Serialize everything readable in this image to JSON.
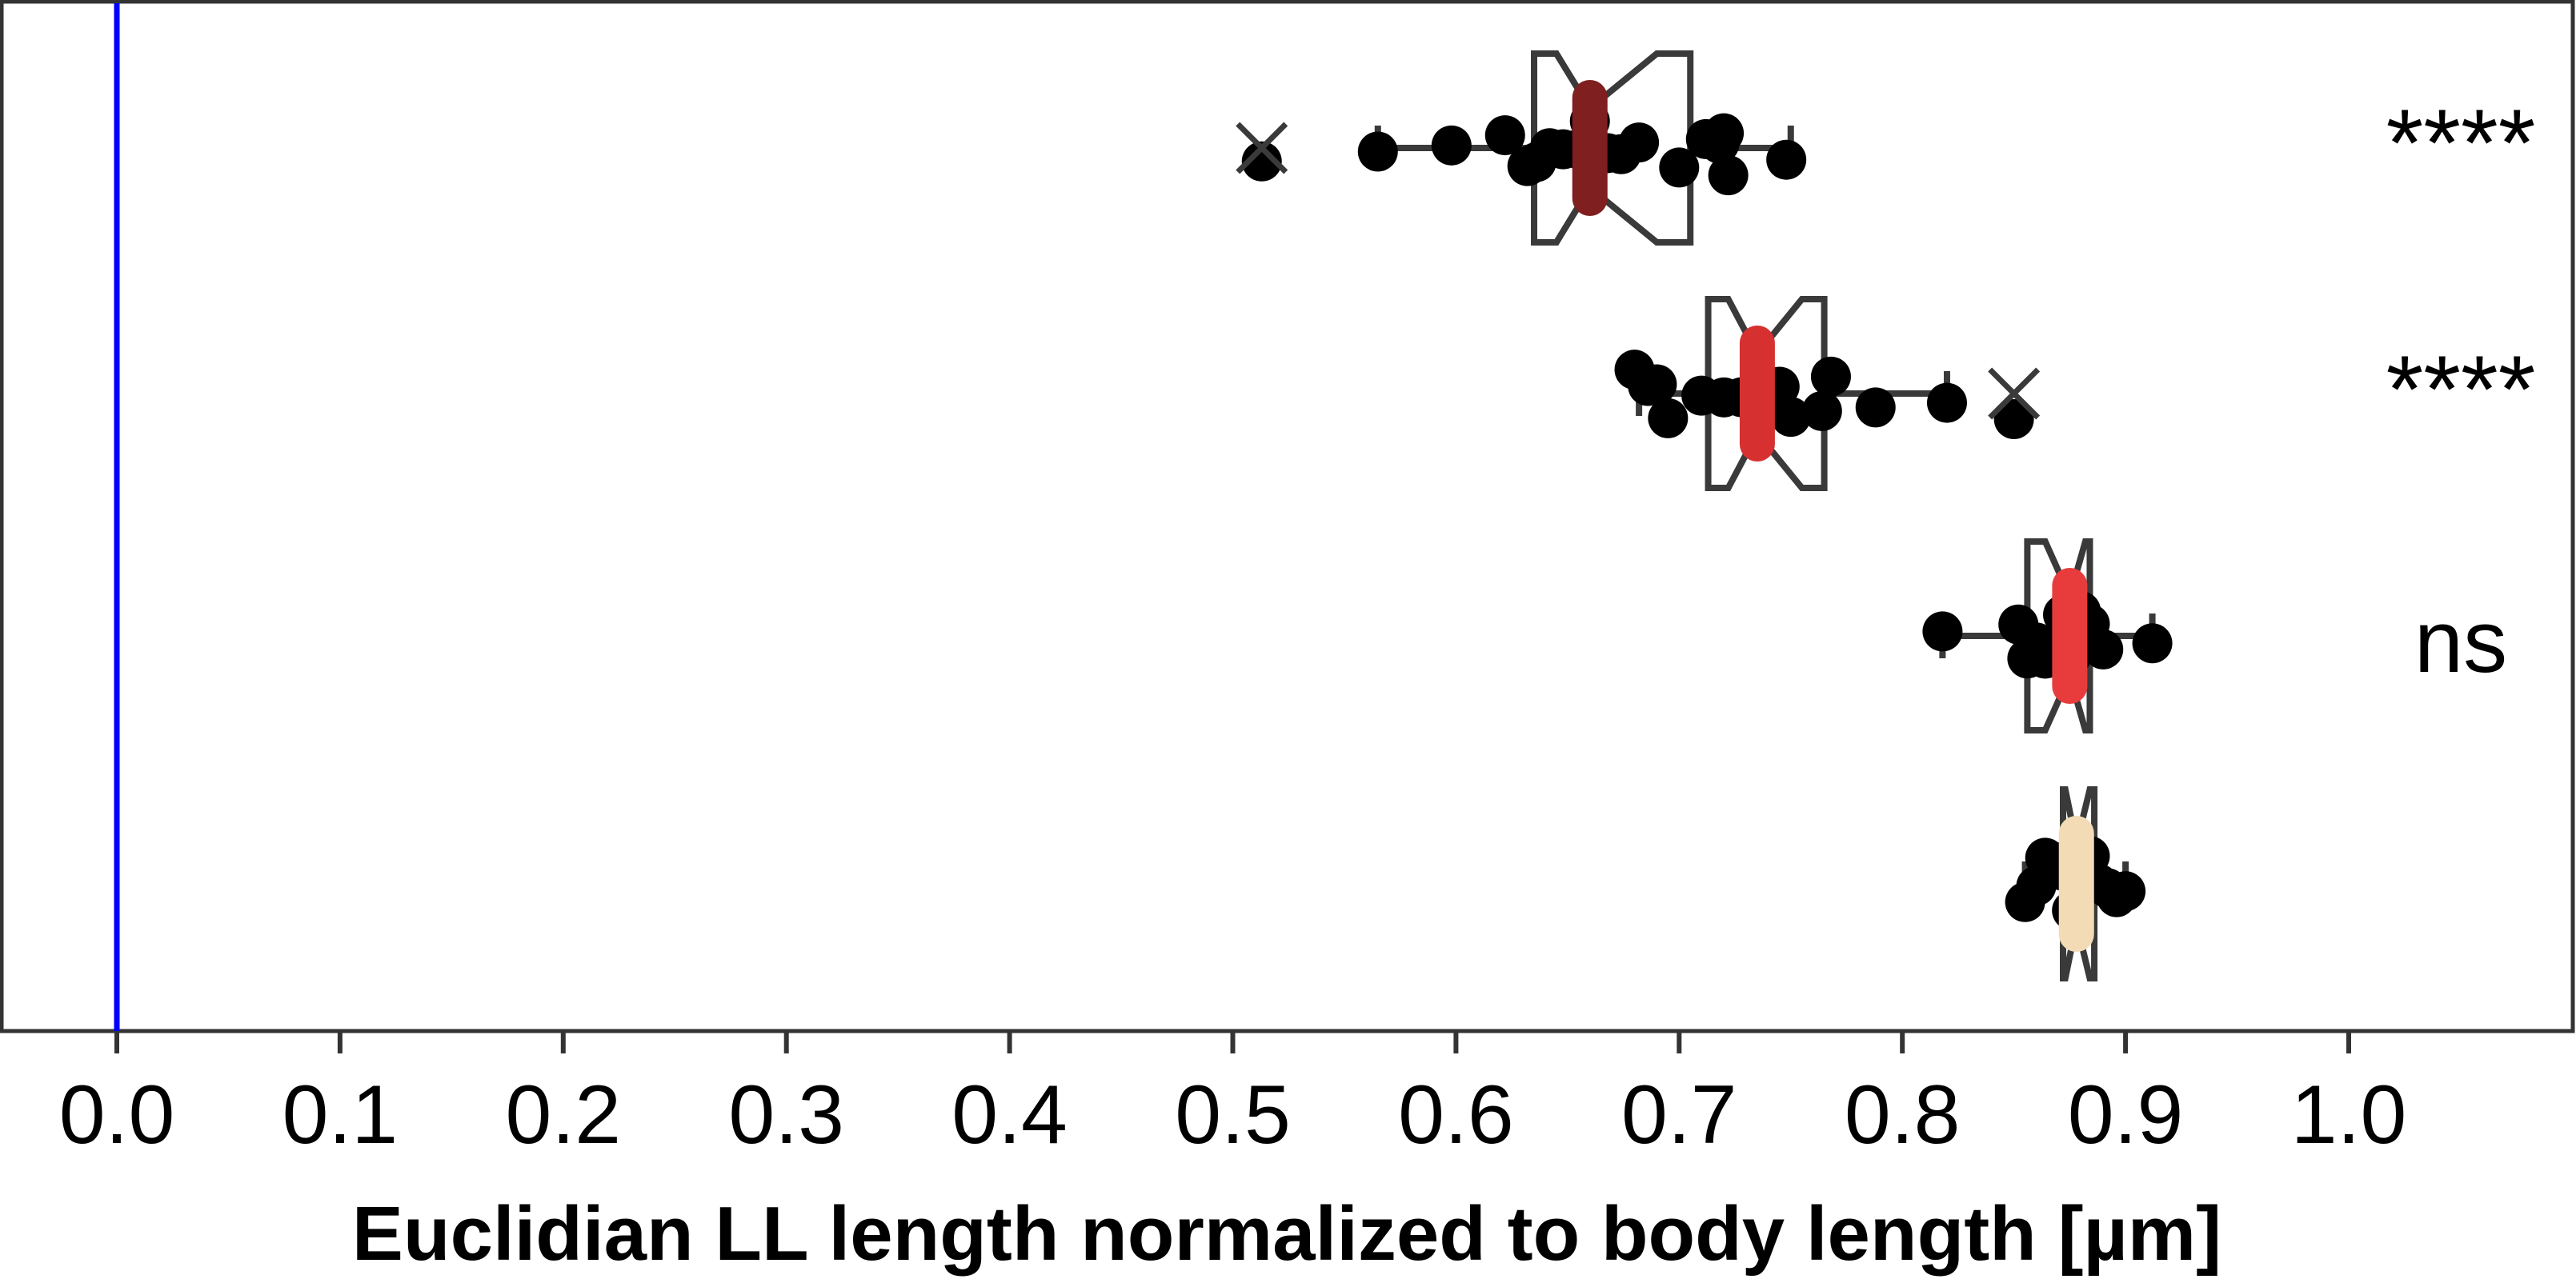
{
  "chart_data": {
    "type": "box",
    "orientation": "horizontal",
    "xlabel": "Euclidian LL length normalized to body length [µm]",
    "xlim": [
      0.0,
      1.1
    ],
    "xticks": [
      "0.0",
      "0.1",
      "0.2",
      "0.3",
      "0.4",
      "0.5",
      "0.6",
      "0.7",
      "0.8",
      "0.9",
      "1.0"
    ],
    "reference_line": {
      "x": 0.0,
      "color": "#0000ff"
    },
    "groups": [
      {
        "median": 0.66,
        "q1": 0.635,
        "q3": 0.705,
        "notch_low": 0.645,
        "notch_high": 0.69,
        "whisker_low": 0.565,
        "whisker_high": 0.75,
        "outliers": [
          0.513
        ],
        "median_color": "#7f1f1f",
        "significance": "****",
        "points": [
          0.513,
          0.565,
          0.598,
          0.622,
          0.632,
          0.636,
          0.642,
          0.648,
          0.655,
          0.66,
          0.668,
          0.674,
          0.682,
          0.7,
          0.712,
          0.718,
          0.72,
          0.722,
          0.748
        ]
      },
      {
        "median": 0.735,
        "q1": 0.713,
        "q3": 0.765,
        "notch_low": 0.722,
        "notch_high": 0.755,
        "whisker_low": 0.682,
        "whisker_high": 0.82,
        "outliers": [
          0.85
        ],
        "median_color": "#d63030",
        "significance": "****",
        "points": [
          0.68,
          0.686,
          0.69,
          0.695,
          0.71,
          0.72,
          0.728,
          0.734,
          0.74,
          0.745,
          0.75,
          0.764,
          0.768,
          0.788,
          0.82,
          0.85
        ]
      },
      {
        "median": 0.875,
        "q1": 0.856,
        "q3": 0.884,
        "notch_low": 0.864,
        "notch_high": 0.882,
        "whisker_low": 0.818,
        "whisker_high": 0.912,
        "outliers": [],
        "median_color": "#e83c3c",
        "significance": "ns",
        "points": [
          0.818,
          0.852,
          0.856,
          0.86,
          0.864,
          0.868,
          0.872,
          0.876,
          0.88,
          0.884,
          0.89,
          0.912
        ]
      },
      {
        "median": 0.878,
        "q1": 0.872,
        "q3": 0.886,
        "notch_low": 0.873,
        "notch_high": 0.884,
        "whisker_low": 0.855,
        "whisker_high": 0.9,
        "outliers": [],
        "median_color": "#f3dcb5",
        "significance": "",
        "points": [
          0.855,
          0.86,
          0.864,
          0.868,
          0.872,
          0.876,
          0.88,
          0.884,
          0.888,
          0.892,
          0.896,
          0.9
        ]
      }
    ]
  }
}
